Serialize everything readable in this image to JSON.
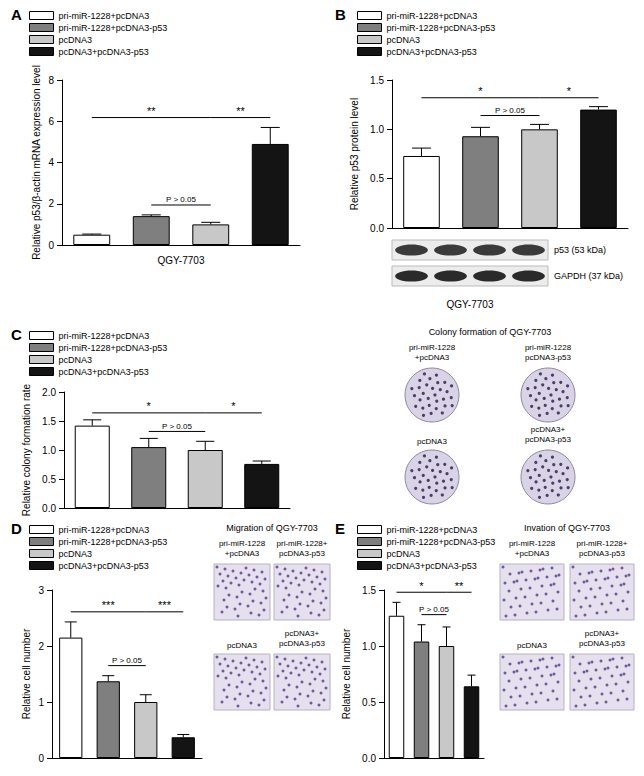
{
  "chart_data": [
    {
      "type": "bar",
      "title": "A",
      "y_label": "Relative p53/β-actin mRNA expression level",
      "categories": [
        "QGY-7703"
      ],
      "series": [
        {
          "name": "pri-miR-1228+pcDNA3",
          "color": "#ffffff",
          "values": [
            0.5
          ],
          "errors": [
            0.03
          ]
        },
        {
          "name": "pri-miR-1228+pcDNA3-p53",
          "color": "#7f7f7f",
          "values": [
            1.4
          ],
          "errors": [
            0.06
          ]
        },
        {
          "name": "pcDNA3",
          "color": "#c8c8c8",
          "values": [
            1.0
          ],
          "errors": [
            0.1
          ]
        },
        {
          "name": "pcDNA3+pcDNA3-p53",
          "color": "#141414",
          "values": [
            4.9
          ],
          "errors": [
            0.8
          ]
        }
      ],
      "ylim": [
        0,
        8
      ],
      "yticks": [
        0,
        2,
        4,
        6,
        8
      ],
      "grid": false,
      "legend": "upper left",
      "annotations": [
        {
          "text": "**",
          "from": 0,
          "to": 2
        },
        {
          "text": "**",
          "from": 2,
          "to": 3
        },
        {
          "text": "P > 0.05",
          "from": 1,
          "to": 2
        }
      ]
    },
    {
      "type": "bar",
      "title": "B",
      "y_label": "Relative p53 protein level",
      "categories": [
        null
      ],
      "series": [
        {
          "name": "pri-miR-1228+pcDNA3",
          "color": "#ffffff",
          "values": [
            0.73
          ],
          "errors": [
            0.08
          ]
        },
        {
          "name": "pri-miR-1228+pcDNA3-p53",
          "color": "#7f7f7f",
          "values": [
            0.93
          ],
          "errors": [
            0.09
          ]
        },
        {
          "name": "pcDNA3",
          "color": "#c8c8c8",
          "values": [
            1.0
          ],
          "errors": [
            0.05
          ]
        },
        {
          "name": "pcDNA3+pcDNA3-p53",
          "color": "#141414",
          "values": [
            1.2
          ],
          "errors": [
            0.03
          ]
        }
      ],
      "ylim": [
        0,
        1.5
      ],
      "yticks": [
        {
          "value": 0,
          "label": "0.0"
        },
        0.5,
        {
          "value": 1,
          "label": "1.0"
        },
        1.5
      ],
      "grid": false,
      "legend": "upper left",
      "annotations": [
        {
          "text": "*",
          "from": 0,
          "to": 2
        },
        {
          "text": "*",
          "from": 2,
          "to": 3
        },
        {
          "text": "P > 0.05",
          "from": 1,
          "to": 2
        }
      ],
      "blot": {
        "bands": [
          "p53 (53 kDa)",
          "GAPDH (37 kDa)"
        ],
        "caption": "QGY-7703"
      }
    },
    {
      "type": "bar",
      "title": "C",
      "y_label": "Relative colony formation rate",
      "categories": [
        null
      ],
      "series": [
        {
          "name": "pri-miR-1228+pcDNA3",
          "color": "#ffffff",
          "values": [
            1.42
          ],
          "errors": [
            0.1
          ]
        },
        {
          "name": "pri-miR-1228+pcDNA3-p53",
          "color": "#7f7f7f",
          "values": [
            1.05
          ],
          "errors": [
            0.15
          ]
        },
        {
          "name": "pcDNA3",
          "color": "#c8c8c8",
          "values": [
            1.0
          ],
          "errors": [
            0.15
          ]
        },
        {
          "name": "pcDNA3+pcDNA3-p53",
          "color": "#141414",
          "values": [
            0.76
          ],
          "errors": [
            0.05
          ]
        }
      ],
      "ylim": [
        0,
        2
      ],
      "yticks": [
        {
          "value": 0,
          "label": "0.0"
        },
        0.5,
        {
          "value": 1,
          "label": "1.0"
        },
        1.5,
        {
          "value": 2,
          "label": "2.0"
        }
      ],
      "grid": false,
      "legend": "upper left",
      "annotations": [
        {
          "text": "*",
          "from": 0,
          "to": 2
        },
        {
          "text": "*",
          "from": 2,
          "to": 3
        },
        {
          "text": "P > 0.05",
          "from": 1,
          "to": 2
        }
      ],
      "images": {
        "title": "Colony formation of QGY-7703",
        "labels": [
          "pri-miR-1228\n+pcDNA3",
          "pri-miR-1228\npcDNA3-p53",
          "pcDNA3",
          "pcDNA3+\npcDNA3-p53"
        ]
      }
    },
    {
      "type": "bar",
      "title": "D",
      "y_label": "Relative cell number",
      "categories": [
        null
      ],
      "series": [
        {
          "name": "pri-miR-1228+pcDNA3",
          "color": "#ffffff",
          "values": [
            2.15
          ],
          "errors": [
            0.28
          ]
        },
        {
          "name": "pri-miR-1228+pcDNA3-p53",
          "color": "#7f7f7f",
          "values": [
            1.37
          ],
          "errors": [
            0.1
          ]
        },
        {
          "name": "pcDNA3",
          "color": "#c8c8c8",
          "values": [
            1.0
          ],
          "errors": [
            0.13
          ]
        },
        {
          "name": "pcDNA3+pcDNA3-p53",
          "color": "#141414",
          "values": [
            0.37
          ],
          "errors": [
            0.05
          ]
        }
      ],
      "ylim": [
        0,
        3
      ],
      "yticks": [
        0,
        1,
        2,
        3
      ],
      "grid": false,
      "legend": "upper left",
      "annotations": [
        {
          "text": "***",
          "from": 0,
          "to": 2
        },
        {
          "text": "***",
          "from": 2,
          "to": 3
        },
        {
          "text": "P > 0.05",
          "from": 1,
          "to": 2
        }
      ],
      "images": {
        "title": "Migration of QGY-7703",
        "labels": [
          "pri-miR-1228\n+pcDNA3",
          "pri-miR-1228+\npcDNA3-p53",
          "pcDNA3",
          "pcDNA3+\npcDNA3-p53"
        ]
      }
    },
    {
      "type": "bar",
      "title": "E",
      "y_label": "Relative cell number",
      "categories": [
        null
      ],
      "series": [
        {
          "name": "pri-miR-1228+pcDNA3",
          "color": "#ffffff",
          "values": [
            1.27
          ],
          "errors": [
            0.12
          ]
        },
        {
          "name": "pri-miR-1228+pcDNA3-p53",
          "color": "#7f7f7f",
          "values": [
            1.04
          ],
          "errors": [
            0.15
          ]
        },
        {
          "name": "pcDNA3",
          "color": "#c8c8c8",
          "values": [
            1.0
          ],
          "errors": [
            0.17
          ]
        },
        {
          "name": "pcDNA3+pcDNA3-p53",
          "color": "#141414",
          "values": [
            0.64
          ],
          "errors": [
            0.1
          ]
        }
      ],
      "ylim": [
        0,
        1.5
      ],
      "yticks": [
        {
          "value": 0,
          "label": "0.0"
        },
        0.5,
        {
          "value": 1,
          "label": "1.0"
        },
        1.5
      ],
      "grid": false,
      "legend": "upper left",
      "annotations": [
        {
          "text": "*",
          "from": 0,
          "to": 2
        },
        {
          "text": "**",
          "from": 2,
          "to": 3
        },
        {
          "text": "P > 0.05",
          "from": 1,
          "to": 2
        }
      ],
      "images": {
        "title": "Invation of QGY-7703",
        "labels": [
          "pri-miR-1228\n+pcDNA3",
          "pri-miR-1228+\npcDNA3-p53",
          "pcDNA3",
          "pcDNA3+\npcDNA3-p53"
        ]
      }
    }
  ]
}
